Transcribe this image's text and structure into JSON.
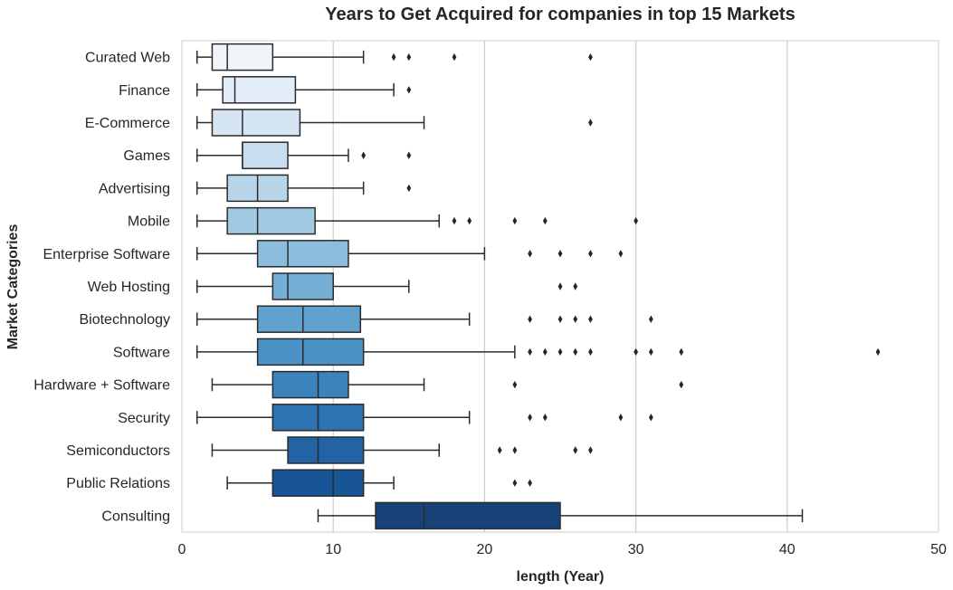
{
  "chart_data": {
    "type": "box",
    "orientation": "horizontal",
    "title": "Years to Get Acquired for companies in top 15 Markets",
    "xlabel": "length (Year)",
    "ylabel": "Market Categories",
    "xlim": [
      0,
      50
    ],
    "xticks": [
      0,
      10,
      20,
      30,
      40,
      50
    ],
    "grid": "vertical",
    "palette": "Blues",
    "categories": [
      {
        "name": "Curated Web",
        "whisker_low": 1,
        "q1": 2,
        "median": 3,
        "q3": 6,
        "whisker_high": 12,
        "outliers": [
          14,
          15,
          18,
          27
        ],
        "color": "#eef4fa"
      },
      {
        "name": "Finance",
        "whisker_low": 1,
        "q1": 2.7,
        "median": 3.5,
        "q3": 7.5,
        "whisker_high": 14,
        "outliers": [
          15
        ],
        "color": "#e2edf8"
      },
      {
        "name": "E-Commerce",
        "whisker_low": 1,
        "q1": 2,
        "median": 4,
        "q3": 7.8,
        "whisker_high": 16,
        "outliers": [
          27
        ],
        "color": "#d6e5f4"
      },
      {
        "name": "Games",
        "whisker_low": 1,
        "q1": 4,
        "median": 4,
        "q3": 7,
        "whisker_high": 11,
        "outliers": [
          12,
          15
        ],
        "color": "#c9ddf0"
      },
      {
        "name": "Advertising",
        "whisker_low": 1,
        "q1": 3,
        "median": 5,
        "q3": 7,
        "whisker_high": 12,
        "outliers": [
          15
        ],
        "color": "#b8d5ea"
      },
      {
        "name": "Mobile",
        "whisker_low": 1,
        "q1": 3,
        "median": 5,
        "q3": 8.8,
        "whisker_high": 17,
        "outliers": [
          18,
          19,
          22,
          24,
          30
        ],
        "color": "#a3cae3"
      },
      {
        "name": "Enterprise Software",
        "whisker_low": 1,
        "q1": 5,
        "median": 7,
        "q3": 11,
        "whisker_high": 20,
        "outliers": [
          23,
          25,
          27,
          29
        ],
        "color": "#8dbddc"
      },
      {
        "name": "Web Hosting",
        "whisker_low": 1,
        "q1": 6,
        "median": 7,
        "q3": 10,
        "whisker_high": 15,
        "outliers": [
          25,
          26
        ],
        "color": "#76afd5"
      },
      {
        "name": "Biotechnology",
        "whisker_low": 1,
        "q1": 5,
        "median": 8,
        "q3": 11.8,
        "whisker_high": 19,
        "outliers": [
          23,
          25,
          26,
          27,
          31
        ],
        "color": "#60a1ce"
      },
      {
        "name": "Software",
        "whisker_low": 1,
        "q1": 5,
        "median": 8,
        "q3": 12,
        "whisker_high": 22,
        "outliers": [
          23,
          24,
          25,
          26,
          27,
          30,
          31,
          33,
          46
        ],
        "color": "#4d92c6"
      },
      {
        "name": "Hardware + Software",
        "whisker_low": 2,
        "q1": 6,
        "median": 9,
        "q3": 11,
        "whisker_high": 16,
        "outliers": [
          22,
          33
        ],
        "color": "#3c83bc"
      },
      {
        "name": "Security",
        "whisker_low": 1,
        "q1": 6,
        "median": 9,
        "q3": 12,
        "whisker_high": 19,
        "outliers": [
          23,
          24,
          29,
          31
        ],
        "color": "#2d72b1"
      },
      {
        "name": "Semiconductors",
        "whisker_low": 2,
        "q1": 7,
        "median": 9,
        "q3": 12,
        "whisker_high": 17,
        "outliers": [
          21,
          22,
          26,
          27
        ],
        "color": "#2163a5"
      },
      {
        "name": "Public Relations",
        "whisker_low": 3,
        "q1": 6,
        "median": 10,
        "q3": 12,
        "whisker_high": 14,
        "outliers": [
          22,
          23
        ],
        "color": "#175596"
      },
      {
        "name": "Consulting",
        "whisker_low": 9,
        "q1": 12.8,
        "median": 16,
        "q3": 25,
        "whisker_high": 41,
        "outliers": [],
        "color": "#174278"
      }
    ]
  }
}
